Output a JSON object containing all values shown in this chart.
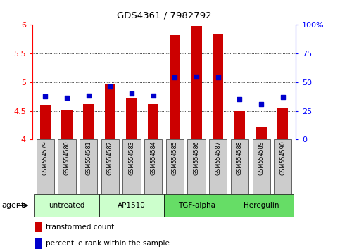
{
  "title": "GDS4361 / 7982792",
  "samples": [
    "GSM554579",
    "GSM554580",
    "GSM554581",
    "GSM554582",
    "GSM554583",
    "GSM554584",
    "GSM554585",
    "GSM554586",
    "GSM554587",
    "GSM554588",
    "GSM554589",
    "GSM554590"
  ],
  "transformed_count": [
    4.6,
    4.52,
    4.62,
    4.97,
    4.73,
    4.62,
    5.82,
    5.98,
    5.85,
    4.5,
    4.23,
    4.55
  ],
  "percentile_rank_left": [
    4.75,
    4.73,
    4.77,
    4.92,
    4.8,
    4.76,
    5.08,
    5.1,
    5.08,
    4.7,
    4.62,
    4.74
  ],
  "ylim_left": [
    4.0,
    6.0
  ],
  "ylim_right": [
    0,
    100
  ],
  "yticks_left": [
    4.0,
    4.5,
    5.0,
    5.5,
    6.0
  ],
  "ytick_labels_left": [
    "4",
    "4.5",
    "5",
    "5.5",
    "6"
  ],
  "yticks_right": [
    0,
    25,
    50,
    75,
    100
  ],
  "ytick_labels_right": [
    "0",
    "25",
    "50",
    "75",
    "100%"
  ],
  "bar_color": "#cc0000",
  "dot_color": "#0000cc",
  "bar_width": 0.5,
  "groups": [
    {
      "label": "untreated",
      "start": 0,
      "end": 3
    },
    {
      "label": "AP1510",
      "start": 3,
      "end": 6
    },
    {
      "label": "TGF-alpha",
      "start": 6,
      "end": 9
    },
    {
      "label": "Heregulin",
      "start": 9,
      "end": 12
    }
  ],
  "group_color_light": "#ccffcc",
  "group_color_dark": "#66dd66",
  "agent_label": "agent",
  "legend_bar_label": "transformed count",
  "legend_dot_label": "percentile rank within the sample",
  "background_color": "#ffffff",
  "sample_box_color": "#cccccc",
  "dot_size": 18
}
